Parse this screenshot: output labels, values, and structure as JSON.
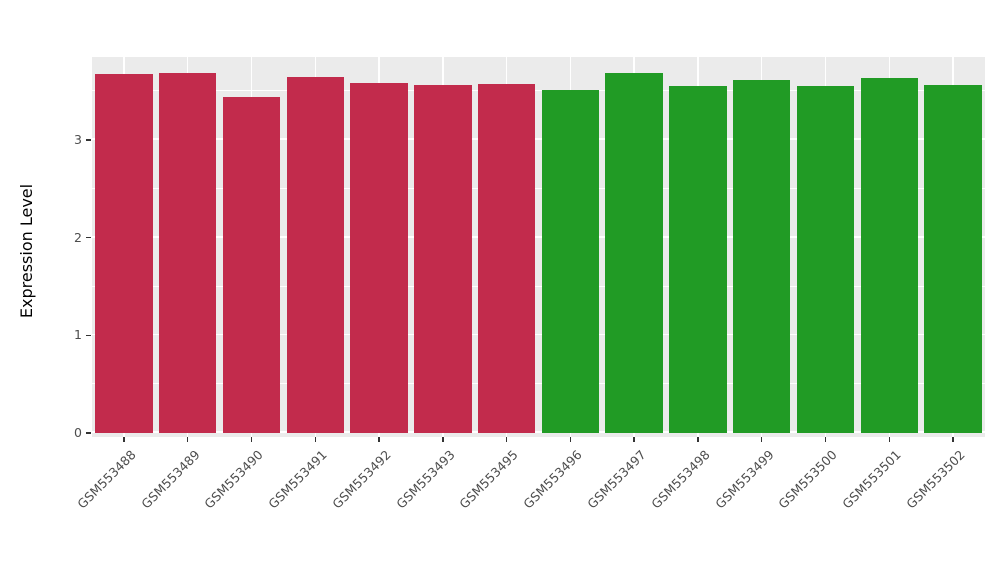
{
  "chart_data": {
    "type": "bar",
    "title": "",
    "xlabel": "",
    "ylabel": "Expression Level",
    "categories": [
      "GSM553488",
      "GSM553489",
      "GSM553490",
      "GSM553491",
      "GSM553492",
      "GSM553493",
      "GSM553495",
      "GSM553496",
      "GSM553497",
      "GSM553498",
      "GSM553499",
      "GSM553500",
      "GSM553501",
      "GSM553502"
    ],
    "series": [
      {
        "name": "Expression Level",
        "values": [
          3.67,
          3.69,
          3.44,
          3.64,
          3.58,
          3.56,
          3.57,
          3.51,
          3.69,
          3.55,
          3.61,
          3.55,
          3.63,
          3.56
        ]
      }
    ],
    "bar_colors": [
      "#C22B4C",
      "#C22B4C",
      "#C22B4C",
      "#C22B4C",
      "#C22B4C",
      "#C22B4C",
      "#C22B4C",
      "#219B25",
      "#219B25",
      "#219B25",
      "#219B25",
      "#219B25",
      "#219B25",
      "#219B25"
    ],
    "group_colors": {
      "red_group": "#C22B4C",
      "green_group": "#219B25"
    },
    "ylim": [
      0,
      3.85
    ],
    "yticks": [
      0,
      1,
      2,
      3
    ],
    "minor_ticks": [
      0.5,
      1.5,
      2.5,
      3.5
    ],
    "grid": "on",
    "legend": "none",
    "panel_bg": "#EBEBEB",
    "grid_color": "#FFFFFF"
  }
}
